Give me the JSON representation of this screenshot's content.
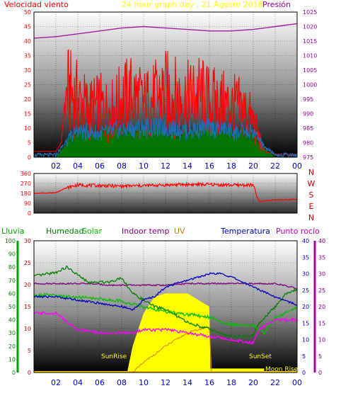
{
  "chart_data": [
    {
      "type": "line",
      "panel": "wind-pressure",
      "title": "24 hour graph day , 21 Agosto 2018",
      "left_label": "Velocidad viento",
      "right_label": "Presión",
      "x_ticks": [
        "02",
        "04",
        "06",
        "08",
        "10",
        "12",
        "14",
        "16",
        "18",
        "20",
        "22",
        "00"
      ],
      "ylim_left": [
        0,
        50
      ],
      "y_ticks_left": [
        "0",
        "5",
        "10",
        "15",
        "20",
        "25",
        "30",
        "35",
        "40",
        "45",
        "50"
      ],
      "ylim_right": [
        975,
        1025
      ],
      "y_ticks_right": [
        "975",
        "980",
        "985",
        "990",
        "995",
        "1000",
        "1005",
        "1010",
        "1015",
        "1020",
        "1025"
      ],
      "x_hours": [
        0,
        24
      ],
      "grid": true,
      "colors": {
        "wind": "#ff0000",
        "wind_avg": "#1e6eb4",
        "gust": "#00a000",
        "pressure": "#a020a0",
        "title": "#ffff00",
        "left_label": "#ff0000",
        "right_label": "#a000a0",
        "y_left_ticks": "#ff0000",
        "y_right_ticks": "#a000a0",
        "x_ticks": "#0000c0"
      },
      "series": [
        {
          "name": "Presión",
          "axis": "right",
          "x": [
            0,
            2,
            4,
            6,
            8,
            10,
            12,
            14,
            16,
            18,
            20,
            22,
            24
          ],
          "values": [
            1016,
            1016.5,
            1017.5,
            1018.5,
            1019.5,
            1020,
            1019.5,
            1019,
            1018.5,
            1018.5,
            1019,
            1020,
            1021
          ]
        },
        {
          "name": "Velocidad viento",
          "axis": "left",
          "x": [
            0,
            2,
            2.5,
            3,
            4,
            5,
            6,
            7,
            8,
            9,
            10,
            11,
            12,
            13,
            14,
            15,
            16,
            17,
            18,
            19,
            20,
            20.5,
            21,
            22,
            23,
            24
          ],
          "values": [
            2,
            2,
            5,
            28,
            24,
            20,
            21,
            19,
            24,
            26,
            22,
            24,
            27,
            25,
            24,
            26,
            23,
            22,
            21,
            20,
            15,
            8,
            2,
            1,
            1,
            1
          ]
        },
        {
          "name": "",
          "axis": "left",
          "x": [
            0,
            2,
            3,
            4,
            6,
            8,
            10,
            12,
            14,
            16,
            18,
            20,
            21,
            22,
            24
          ],
          "values": [
            0,
            0,
            5,
            9,
            8,
            9,
            10,
            10,
            9,
            10,
            9,
            8,
            3,
            0,
            0
          ]
        }
      ]
    },
    {
      "type": "line",
      "panel": "wind-direction",
      "y_ticks": [
        "0",
        "90",
        "180",
        "270",
        "360"
      ],
      "ylim": [
        0,
        360
      ],
      "compass_labels": [
        "N",
        "W",
        "S",
        "E",
        "N"
      ],
      "grid": true,
      "series": [
        {
          "name": "",
          "x": [
            0,
            2,
            3,
            4,
            6,
            8,
            10,
            12,
            14,
            16,
            18,
            20,
            20.5,
            21,
            22,
            24
          ],
          "values": [
            180,
            185,
            230,
            255,
            250,
            245,
            250,
            255,
            260,
            260,
            255,
            255,
            105,
            110,
            120,
            125
          ]
        }
      ]
    },
    {
      "type": "line",
      "panel": "temperature-humidity-solar",
      "legend": [
        {
          "label": "Lluvia",
          "color": "#00a000"
        },
        {
          "label": "Humedad",
          "color": "#008000"
        },
        {
          "label": "Solar",
          "color": "#00c000"
        },
        {
          "label": "Indoor temp",
          "color": "#800080"
        },
        {
          "label": "UV",
          "color": "#c08000"
        },
        {
          "label": "Temperatura",
          "color": "#0000c0"
        },
        {
          "label": "Punto rocío",
          "color": "#c000c0"
        }
      ],
      "y_ticks_far_left": [
        "0",
        "10",
        "20",
        "30",
        "40",
        "50",
        "60",
        "70",
        "80",
        "90",
        "100"
      ],
      "ylim_far_left": [
        0,
        100
      ],
      "y_ticks_left": [
        "0",
        "5",
        "10",
        "15",
        "20",
        "25",
        "30"
      ],
      "ylim_left": [
        0,
        30
      ],
      "y_ticks_right": [
        "0",
        "5",
        "10",
        "15",
        "20",
        "25",
        "30",
        "35",
        "40"
      ],
      "ylim_right": [
        0,
        40
      ],
      "y_ticks_far_right": [
        "0",
        "5",
        "10",
        "15",
        "20",
        "25",
        "30",
        "35",
        "40"
      ],
      "ylim_far_right": [
        0,
        40
      ],
      "x_ticks": [
        "02",
        "04",
        "06",
        "08",
        "10",
        "12",
        "14",
        "16",
        "18",
        "20",
        "22",
        "00"
      ],
      "annotations": [
        "SunRise",
        "SunSet",
        "Moon Rise"
      ],
      "grid": true,
      "series": [
        {
          "name": "Humedad",
          "axis": "far_left",
          "x": [
            0,
            2,
            3,
            5,
            7,
            8,
            9,
            10,
            11,
            12,
            14,
            16,
            18,
            20,
            20.5,
            22,
            23,
            24
          ],
          "values": [
            73,
            76,
            80,
            68,
            69,
            72,
            60,
            55,
            50,
            48,
            38,
            33,
            27,
            28,
            37,
            50,
            60,
            63
          ]
        },
        {
          "name": "Solar",
          "axis": "far_left",
          "x": [
            0,
            1,
            2,
            4,
            6,
            8,
            9,
            10,
            12,
            14,
            16,
            18,
            20,
            21,
            22,
            24
          ],
          "values": [
            58,
            59,
            58,
            57,
            56,
            54,
            52,
            50,
            46,
            44,
            42,
            36,
            36,
            30,
            41,
            50
          ]
        },
        {
          "name": "Indoor temp",
          "axis": "right",
          "x": [
            0,
            3,
            5,
            7,
            9,
            10,
            12,
            14,
            16,
            18,
            20,
            22,
            24
          ],
          "values": [
            27,
            27,
            27,
            26.5,
            26.5,
            26.5,
            26.5,
            27,
            27,
            27,
            27,
            27,
            25.5
          ]
        },
        {
          "name": "Temperatura",
          "axis": "right",
          "x": [
            0,
            2,
            4,
            6,
            8,
            9,
            10,
            11,
            12,
            14,
            16,
            17,
            18,
            20,
            22,
            24
          ],
          "values": [
            23,
            23,
            22,
            21,
            20,
            19,
            22,
            23,
            26,
            28,
            30,
            30,
            29,
            26,
            23,
            20.5
          ]
        },
        {
          "name": "Punto rocío",
          "axis": "right",
          "x": [
            0,
            2,
            4,
            6,
            8,
            9,
            10,
            11,
            12,
            14,
            16,
            18,
            20,
            20.5,
            22,
            24
          ],
          "values": [
            18,
            18,
            13,
            12,
            12,
            12,
            13,
            13,
            13,
            12,
            11,
            10,
            9,
            13,
            16,
            16
          ]
        },
        {
          "name": "Solar radiation",
          "axis": "right",
          "x": [
            8.5,
            9,
            10,
            11,
            12,
            13,
            14,
            15,
            16,
            16.1,
            24
          ],
          "values": [
            0,
            8,
            18,
            23,
            24,
            24,
            24,
            22,
            20,
            0,
            0
          ]
        },
        {
          "name": "UV",
          "axis": "right",
          "x": [
            9,
            10,
            12,
            14,
            16,
            16.2
          ],
          "values": [
            0,
            3,
            8,
            12,
            14,
            0
          ]
        }
      ]
    }
  ]
}
